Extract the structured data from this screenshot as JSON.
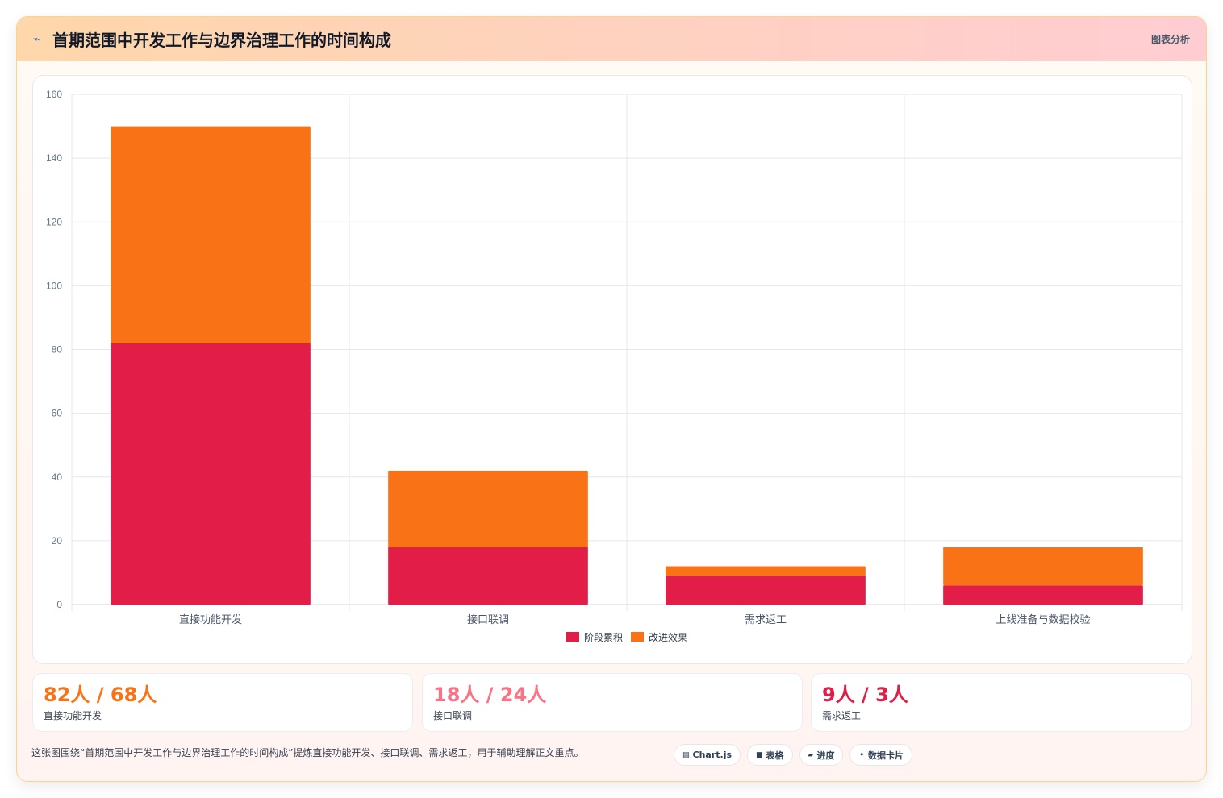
{
  "header": {
    "title": "首期范围中开发工作与边界治理工作的时间构成",
    "tag": "图表分析"
  },
  "chart_data": {
    "type": "bar",
    "stacked": true,
    "categories": [
      "直接功能开发",
      "接口联调",
      "需求返工",
      "上线准备与数据校验"
    ],
    "series": [
      {
        "name": "阶段累积",
        "values": [
          82,
          18,
          9,
          6
        ],
        "color": "#e11d48"
      },
      {
        "name": "改进效果",
        "values": [
          68,
          24,
          3,
          12
        ],
        "color": "#f97316"
      }
    ],
    "ylim": [
      0,
      160
    ],
    "yticks": [
      0,
      20,
      40,
      60,
      80,
      100,
      120,
      140,
      160
    ],
    "grid": true,
    "legend": "bottom"
  },
  "stats": [
    {
      "value": "82人 / 68人",
      "label": "直接功能开发",
      "color": "#f97316"
    },
    {
      "value": "18人 / 24人",
      "label": "接口联调",
      "color": "#fb7185"
    },
    {
      "value": "9人 / 3人",
      "label": "需求返工",
      "color": "#e11d48"
    }
  ],
  "footer": {
    "text": "这张图围绕“首期范围中开发工作与边界治理工作的时间构成”提炼直接功能开发、接口联调、需求返工，用于辅助理解正文重点。",
    "chips": [
      {
        "icon": "▤",
        "label": "Chart.js"
      },
      {
        "icon": "■",
        "label": "表格"
      },
      {
        "icon": "▰",
        "label": "进度"
      },
      {
        "icon": "✦",
        "label": "数据卡片"
      }
    ]
  }
}
